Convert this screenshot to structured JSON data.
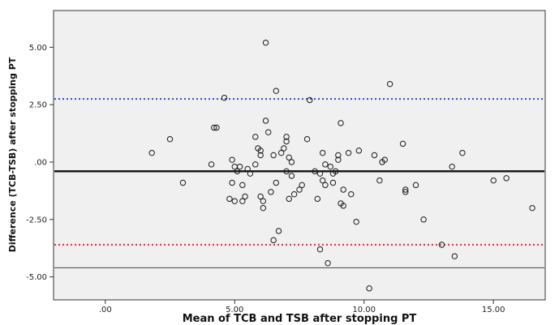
{
  "chart_data": {
    "type": "scatter",
    "title": "",
    "xlabel": "Mean of TCB and TSB after stopping PT",
    "ylabel": "Difference (TCB-TSB) after stopping PT",
    "xlim": [
      -2.0,
      17.0
    ],
    "ylim": [
      -6.0,
      6.6
    ],
    "grid": false,
    "legend": "none",
    "x_ticks": [
      {
        "value": 0,
        "label": ".00"
      },
      {
        "value": 5,
        "label": "5.00"
      },
      {
        "value": 10,
        "label": "10.00"
      },
      {
        "value": 15,
        "label": "15.00"
      }
    ],
    "y_ticks": [
      {
        "value": 5,
        "label": "5.00"
      },
      {
        "value": 2.5,
        "label": "2.50"
      },
      {
        "value": 0,
        "label": ".00"
      },
      {
        "value": -2.5,
        "label": "-2.50"
      },
      {
        "value": -5,
        "label": "-5.00"
      }
    ],
    "reference_lines": [
      {
        "y": 2.75,
        "style": "dotted",
        "color": "#3a4fd6"
      },
      {
        "y": -0.4,
        "style": "solid-thick",
        "color": "#111111"
      },
      {
        "y": -3.6,
        "style": "dotted",
        "color": "#e8384b"
      },
      {
        "y": -4.6,
        "style": "solid-thin",
        "color": "#444444"
      }
    ],
    "points": [
      [
        1.8,
        0.4
      ],
      [
        2.5,
        1.0
      ],
      [
        3.0,
        -0.9
      ],
      [
        4.1,
        -0.1
      ],
      [
        4.2,
        1.5
      ],
      [
        4.3,
        1.5
      ],
      [
        4.6,
        2.8
      ],
      [
        4.8,
        -1.6
      ],
      [
        4.9,
        -0.9
      ],
      [
        4.9,
        0.1
      ],
      [
        5.0,
        -0.2
      ],
      [
        5.0,
        -1.7
      ],
      [
        5.1,
        -0.4
      ],
      [
        5.2,
        -0.2
      ],
      [
        5.3,
        -1.0
      ],
      [
        5.3,
        -1.7
      ],
      [
        5.4,
        -1.5
      ],
      [
        5.5,
        -0.3
      ],
      [
        5.6,
        -0.5
      ],
      [
        5.8,
        1.1
      ],
      [
        5.8,
        -0.1
      ],
      [
        5.9,
        0.6
      ],
      [
        6.0,
        0.5
      ],
      [
        6.0,
        0.3
      ],
      [
        6.0,
        -1.5
      ],
      [
        6.1,
        -1.7
      ],
      [
        6.1,
        -2.0
      ],
      [
        6.2,
        1.8
      ],
      [
        6.2,
        5.2
      ],
      [
        6.3,
        1.3
      ],
      [
        6.4,
        -1.3
      ],
      [
        6.5,
        0.3
      ],
      [
        6.5,
        -3.4
      ],
      [
        6.6,
        3.1
      ],
      [
        6.6,
        -0.9
      ],
      [
        6.7,
        -3.0
      ],
      [
        6.8,
        0.4
      ],
      [
        6.9,
        0.6
      ],
      [
        7.0,
        0.9
      ],
      [
        7.0,
        1.1
      ],
      [
        7.0,
        -0.4
      ],
      [
        7.1,
        0.2
      ],
      [
        7.1,
        -1.6
      ],
      [
        7.2,
        -0.6
      ],
      [
        7.2,
        0.0
      ],
      [
        7.3,
        -1.4
      ],
      [
        7.5,
        -1.2
      ],
      [
        7.6,
        -1.0
      ],
      [
        7.8,
        1.0
      ],
      [
        7.9,
        2.7
      ],
      [
        8.1,
        -0.4
      ],
      [
        8.2,
        -1.6
      ],
      [
        8.3,
        -3.8
      ],
      [
        8.3,
        -0.5
      ],
      [
        8.4,
        -0.8
      ],
      [
        8.4,
        0.4
      ],
      [
        8.5,
        -0.1
      ],
      [
        8.5,
        -1.0
      ],
      [
        8.6,
        -4.4
      ],
      [
        8.7,
        -0.2
      ],
      [
        8.8,
        -0.5
      ],
      [
        8.8,
        -0.9
      ],
      [
        8.9,
        -0.4
      ],
      [
        9.0,
        0.3
      ],
      [
        9.0,
        0.1
      ],
      [
        9.1,
        1.7
      ],
      [
        9.1,
        -1.8
      ],
      [
        9.2,
        -1.9
      ],
      [
        9.2,
        -1.2
      ],
      [
        9.4,
        0.4
      ],
      [
        9.5,
        -1.4
      ],
      [
        9.7,
        -2.6
      ],
      [
        9.8,
        0.5
      ],
      [
        10.2,
        -5.5
      ],
      [
        10.4,
        0.3
      ],
      [
        10.6,
        -0.8
      ],
      [
        10.7,
        0.0
      ],
      [
        10.8,
        0.1
      ],
      [
        11.0,
        3.4
      ],
      [
        11.5,
        0.8
      ],
      [
        11.6,
        -1.2
      ],
      [
        11.6,
        -1.3
      ],
      [
        12.0,
        -1.0
      ],
      [
        12.3,
        -2.5
      ],
      [
        13.0,
        -3.6
      ],
      [
        13.4,
        -0.2
      ],
      [
        13.5,
        -4.1
      ],
      [
        13.8,
        0.4
      ],
      [
        15.0,
        -0.8
      ],
      [
        15.5,
        -0.7
      ],
      [
        16.5,
        -2.0
      ]
    ]
  }
}
